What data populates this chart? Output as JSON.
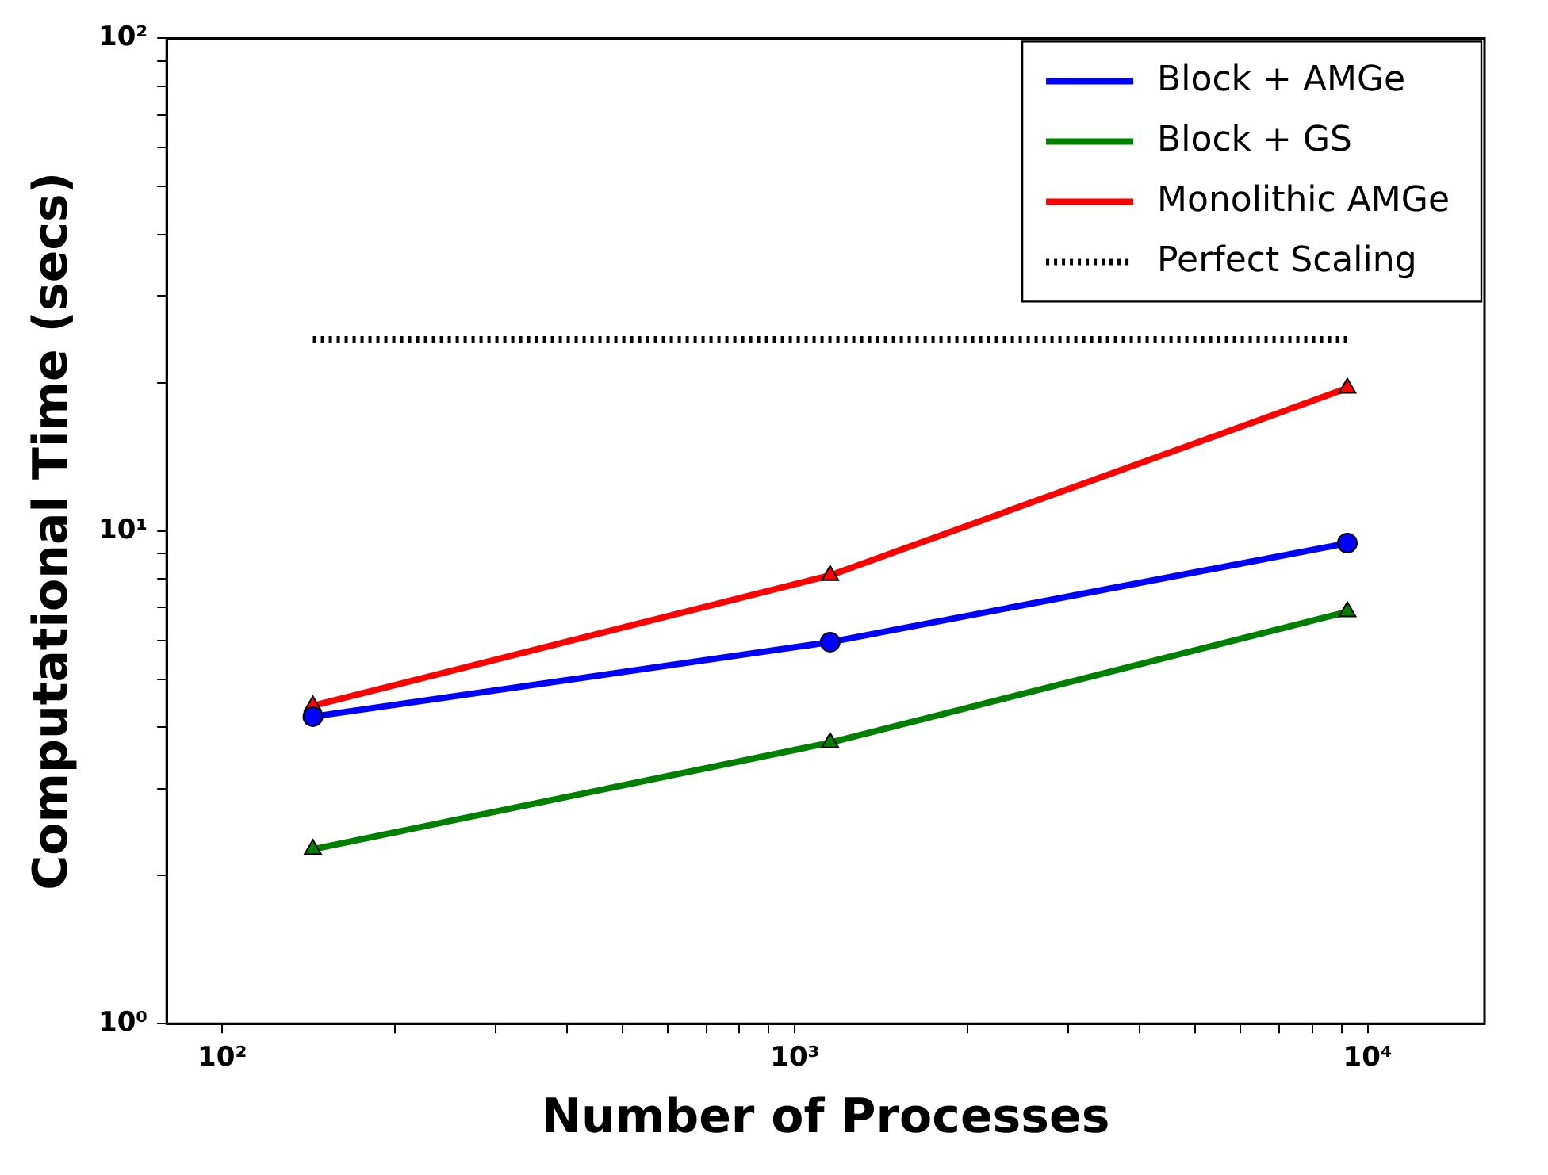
{
  "chart_data": {
    "type": "line",
    "xlabel": "Number of Processes",
    "ylabel": "Computational Time (secs)",
    "x": [
      144,
      1152,
      9216
    ],
    "log": "xy",
    "grid": false,
    "legend": "top right",
    "xlim": [
      80,
      16000
    ],
    "ylim": [
      1,
      100
    ],
    "xticks": [
      {
        "value": 100,
        "label": "10²"
      },
      {
        "value": 200,
        "label": null
      },
      {
        "value": 300,
        "label": null
      },
      {
        "value": 400,
        "label": null
      },
      {
        "value": 500,
        "label": null
      },
      {
        "value": 600,
        "label": null
      },
      {
        "value": 700,
        "label": null
      },
      {
        "value": 800,
        "label": null
      },
      {
        "value": 900,
        "label": null
      },
      {
        "value": 1000,
        "label": "10³"
      },
      {
        "value": 2000,
        "label": null
      },
      {
        "value": 3000,
        "label": null
      },
      {
        "value": 4000,
        "label": null
      },
      {
        "value": 5000,
        "label": null
      },
      {
        "value": 6000,
        "label": null
      },
      {
        "value": 7000,
        "label": null
      },
      {
        "value": 8000,
        "label": null
      },
      {
        "value": 9000,
        "label": null
      },
      {
        "value": 10000,
        "label": "10⁴"
      }
    ],
    "yticks": [
      {
        "value": 1,
        "label": "10⁰"
      },
      {
        "value": 2,
        "label": null
      },
      {
        "value": 3,
        "label": null
      },
      {
        "value": 4,
        "label": null
      },
      {
        "value": 5,
        "label": null
      },
      {
        "value": 6,
        "label": null
      },
      {
        "value": 7,
        "label": null
      },
      {
        "value": 8,
        "label": null
      },
      {
        "value": 9,
        "label": null
      },
      {
        "value": 10,
        "label": "10¹"
      },
      {
        "value": 20,
        "label": null
      },
      {
        "value": 30,
        "label": null
      },
      {
        "value": 40,
        "label": null
      },
      {
        "value": 50,
        "label": null
      },
      {
        "value": 60,
        "label": null
      },
      {
        "value": 70,
        "label": null
      },
      {
        "value": 80,
        "label": null
      },
      {
        "value": 90,
        "label": null
      },
      {
        "value": 100,
        "label": "10²"
      }
    ],
    "series": [
      {
        "name": "Block + AMGe",
        "color": "#0000ff",
        "marker": "circle",
        "line_style": "solid",
        "values": [
          4.2,
          5.95,
          9.45
        ]
      },
      {
        "name": "Block + GS",
        "color": "#008000",
        "marker": "triangle",
        "line_style": "solid",
        "values": [
          2.26,
          3.72,
          6.86
        ]
      },
      {
        "name": "Monolithic AMGe",
        "color": "#ff0000",
        "marker": "triangle",
        "line_style": "solid",
        "values": [
          4.42,
          8.13,
          19.5
        ]
      },
      {
        "name": "Perfect Scaling",
        "color": "#000000",
        "marker": "none",
        "line_style": "dotted",
        "values": [
          24.5,
          24.5,
          24.5
        ]
      }
    ]
  }
}
